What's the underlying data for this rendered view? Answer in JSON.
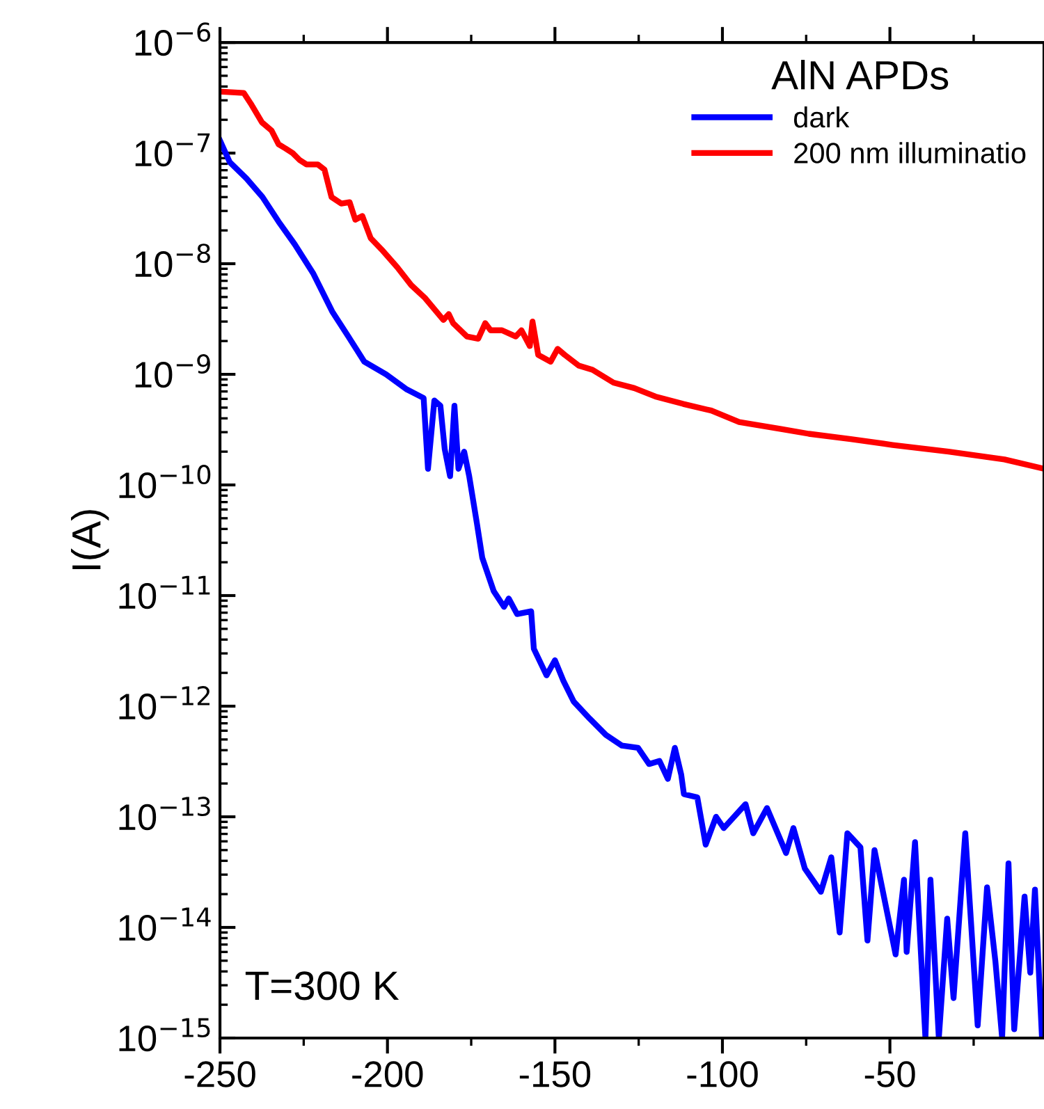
{
  "chart_data": {
    "type": "line",
    "ylabel": "I(A)",
    "legend_title": "AlN APDs",
    "legend": "top right",
    "log": "y",
    "grid": false,
    "xlim": [
      -250,
      -4
    ],
    "xticks": [
      -250,
      -200,
      -150,
      -100,
      -50
    ],
    "ylim": [
      1e-15,
      1e-06
    ],
    "yticks": [
      {
        "value": 1e-15,
        "label": "10$^{−15}$"
      },
      {
        "value": 1e-14,
        "label": "10$^{−14}$"
      },
      {
        "value": 1e-13,
        "label": "10$^{−13}$"
      },
      {
        "value": 1e-12,
        "label": "10$^{−12}$"
      },
      {
        "value": 1e-11,
        "label": "10$^{−11}$"
      },
      {
        "value": 1e-10,
        "label": "10$^{−10}$"
      },
      {
        "value": 1e-09,
        "label": "10$^{−9}$"
      },
      {
        "value": 1e-08,
        "label": "10$^{−8}$"
      },
      {
        "value": 1e-07,
        "label": "10$^{−7}$"
      },
      {
        "value": 1e-06,
        "label": "10$^{−6}$"
      }
    ],
    "annotations": [
      "T=300 K"
    ],
    "series": [
      {
        "name": "dark",
        "color": "#0000ff",
        "x": [
          -250,
          -247.1,
          -242.1,
          -237.3,
          -232.5,
          -227.7,
          -222.1,
          -216.5,
          -211.7,
          -206.9,
          -200.4,
          -194.2,
          -189.2,
          -187.9,
          -186,
          -184.2,
          -182.9,
          -181.3,
          -180,
          -178.8,
          -177.1,
          -175.6,
          -173.3,
          -171.7,
          -168.3,
          -165.2,
          -163.8,
          -161.3,
          -157.1,
          -156.3,
          -152.5,
          -150,
          -147.5,
          -144.4,
          -139.6,
          -134.8,
          -130,
          -125.2,
          -121.9,
          -118.8,
          -116.3,
          -114.2,
          -112.3,
          -111.5,
          -107.5,
          -105,
          -101.9,
          -99.6,
          -93.1,
          -90.8,
          -86.7,
          -81,
          -78.8,
          -75.4,
          -70.6,
          -67.5,
          -65,
          -62.7,
          -58.8,
          -56.7,
          -54.6,
          -48.3,
          -45.8,
          -45,
          -42.5,
          -39.4,
          -37.9,
          -35.4,
          -32.9,
          -31,
          -27.5,
          -23.8,
          -21,
          -18.5,
          -16.5,
          -14.6,
          -12.9,
          -9.8,
          -8.1,
          -6.7,
          -4.6
        ],
        "values": [
          1.3e-07,
          8.3e-08,
          5.9e-08,
          4e-08,
          2.4e-08,
          1.5e-08,
          8.1e-09,
          3.7e-09,
          2.2e-09,
          1.3e-09,
          1e-09,
          7.3e-10,
          6.1e-10,
          1.4e-10,
          5.8e-10,
          5.2e-10,
          2.1e-10,
          1.2e-10,
          5.2e-10,
          1.4e-10,
          2e-10,
          1.2e-10,
          4.5e-11,
          2.2e-11,
          1.1e-11,
          7.9e-12,
          9.4e-12,
          6.8e-12,
          7.2e-12,
          3.3e-12,
          1.9e-12,
          2.6e-12,
          1.7e-12,
          1.1e-12,
          7.7e-13,
          5.5e-13,
          4.4e-13,
          4.2e-13,
          3e-13,
          3.2e-13,
          2.2e-13,
          4.2e-13,
          2.4e-13,
          1.6e-13,
          1.5e-13,
          5.6e-14,
          1e-13,
          7.9e-14,
          1.3e-13,
          7.1e-14,
          1.2e-13,
          4.7e-14,
          7.9e-14,
          3.4e-14,
          2.1e-14,
          4.3e-14,
          9e-15,
          7.1e-14,
          5.3e-14,
          7.6e-15,
          5e-14,
          5.7e-15,
          2.7e-14,
          6e-15,
          5.9e-14,
          1e-15,
          2.7e-14,
          1e-15,
          1.2e-14,
          2.3e-15,
          7.1e-14,
          1.3e-15,
          2.3e-14,
          4.9e-15,
          1e-15,
          3.8e-14,
          1.2e-15,
          1.9e-14,
          3.9e-15,
          2.2e-14,
          1e-15
        ]
      },
      {
        "name": "200 nm illuminatio",
        "color": "#ff0000",
        "x": [
          -250,
          -242.9,
          -240.8,
          -237.5,
          -234.6,
          -232.5,
          -230.4,
          -228.3,
          -226.3,
          -224.2,
          -220.8,
          -218.8,
          -216.7,
          -213.8,
          -211.3,
          -209.6,
          -207.5,
          -205,
          -201.3,
          -197.1,
          -192.9,
          -188.8,
          -183.3,
          -181.7,
          -180.4,
          -176.3,
          -172.9,
          -170.8,
          -169.2,
          -165.8,
          -161.7,
          -160,
          -157.5,
          -156.7,
          -155,
          -151.3,
          -149.2,
          -147.1,
          -142.9,
          -138.8,
          -132.5,
          -126.3,
          -120,
          -111.7,
          -103.3,
          -95,
          -82.5,
          -74.2,
          -61.7,
          -49.2,
          -32.5,
          -15.8,
          -4
        ],
        "values": [
          3.6e-07,
          3.5e-07,
          2.8e-07,
          1.9e-07,
          1.6e-07,
          1.2e-07,
          1.1e-07,
          1e-07,
          8.7e-08,
          7.9e-08,
          7.9e-08,
          7.1e-08,
          4e-08,
          3.5e-08,
          3.6e-08,
          2.5e-08,
          2.7e-08,
          1.7e-08,
          1.3e-08,
          9.3e-09,
          6.4e-09,
          4.9e-09,
          3.1e-09,
          3.5e-09,
          2.9e-09,
          2.2e-09,
          2.1e-09,
          2.9e-09,
          2.5e-09,
          2.5e-09,
          2.2e-09,
          2.5e-09,
          1.8e-09,
          3e-09,
          1.5e-09,
          1.3e-09,
          1.7e-09,
          1.5e-09,
          1.2e-09,
          1.1e-09,
          8.4e-10,
          7.5e-10,
          6.3e-10,
          5.4e-10,
          4.7e-10,
          3.7e-10,
          3.2e-10,
          2.9e-10,
          2.6e-10,
          2.3e-10,
          2e-10,
          1.7e-10,
          1.4e-10
        ]
      }
    ]
  }
}
